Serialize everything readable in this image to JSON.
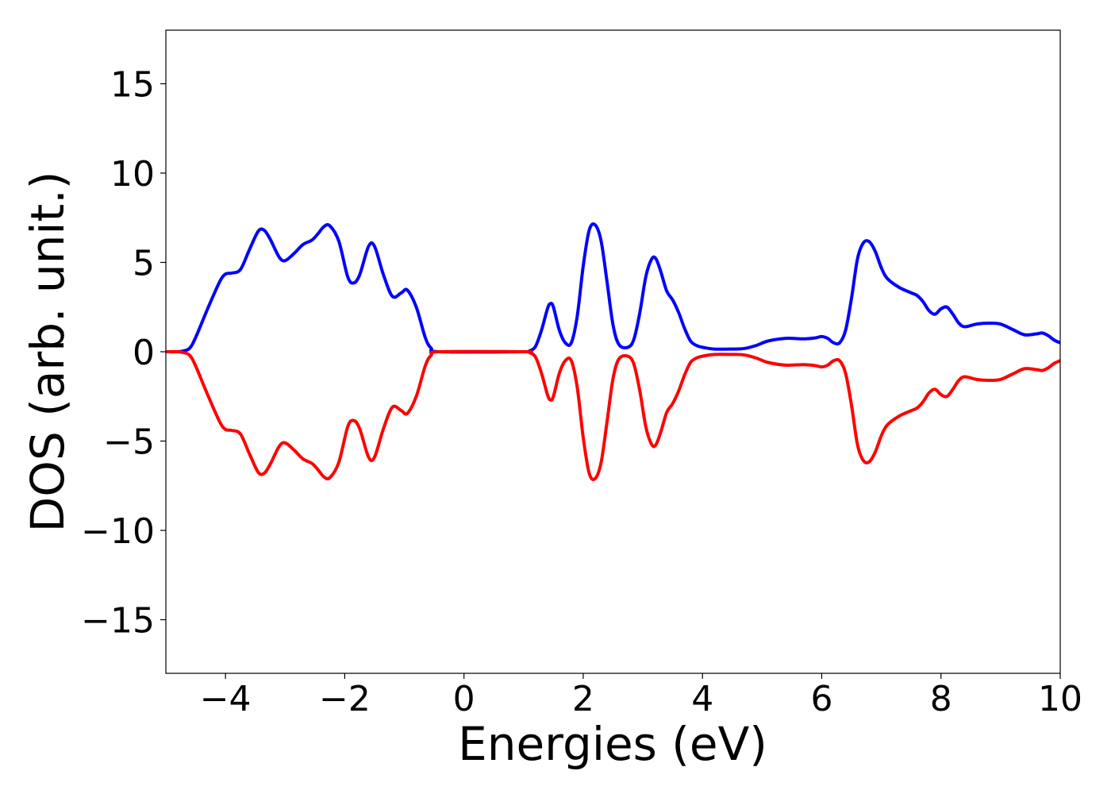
{
  "chart_data": {
    "type": "line",
    "xlabel": "Energies (eV)",
    "ylabel": "DOS (arb. unit.)",
    "xlim": [
      -5,
      10
    ],
    "ylim": [
      -18,
      18
    ],
    "xticks": [
      -4,
      -2,
      0,
      2,
      4,
      6,
      8,
      10
    ],
    "xtick_labels": [
      "−4",
      "−2",
      "0",
      "2",
      "4",
      "6",
      "8",
      "10"
    ],
    "yticks": [
      15,
      10,
      5,
      0,
      -5,
      -10,
      -15
    ],
    "ytick_labels": [
      "15",
      "10",
      "5",
      "0",
      "−5",
      "−10",
      "−15"
    ],
    "grid": false,
    "series": [
      {
        "color": "#0000ff",
        "x": [
          -5.0,
          -4.8,
          -4.7,
          -4.6,
          -4.5,
          -4.3,
          -4.1,
          -4.0,
          -3.9,
          -3.75,
          -3.6,
          -3.45,
          -3.35,
          -3.25,
          -3.1,
          -3.0,
          -2.85,
          -2.7,
          -2.55,
          -2.45,
          -2.35,
          -2.25,
          -2.1,
          -1.95,
          -1.85,
          -1.75,
          -1.6,
          -1.5,
          -1.35,
          -1.2,
          -1.05,
          -0.95,
          -0.8,
          -0.65,
          -0.55,
          -0.4,
          1.0,
          1.1,
          1.2,
          1.3,
          1.4,
          1.45,
          1.5,
          1.6,
          1.7,
          1.8,
          1.9,
          2.0,
          2.1,
          2.2,
          2.3,
          2.4,
          2.5,
          2.6,
          2.75,
          2.85,
          2.95,
          3.05,
          3.15,
          3.22,
          3.3,
          3.4,
          3.5,
          3.6,
          3.7,
          3.8,
          3.9,
          4.0,
          4.2,
          4.5,
          4.7,
          4.9,
          5.1,
          5.4,
          5.7,
          5.9,
          6.0,
          6.1,
          6.2,
          6.3,
          6.4,
          6.5,
          6.6,
          6.7,
          6.8,
          6.9,
          7.0,
          7.1,
          7.3,
          7.5,
          7.6,
          7.7,
          7.8,
          7.9,
          8.0,
          8.1,
          8.2,
          8.3,
          8.4,
          8.6,
          8.8,
          9.0,
          9.2,
          9.4,
          9.6,
          9.7,
          9.8,
          9.9,
          10.0
        ],
        "y": [
          0.0,
          0.0,
          0.05,
          0.2,
          0.8,
          2.4,
          3.9,
          4.35,
          4.4,
          4.6,
          5.7,
          6.75,
          6.8,
          6.3,
          5.3,
          5.1,
          5.5,
          6.0,
          6.25,
          6.6,
          7.0,
          7.05,
          6.2,
          4.2,
          3.85,
          4.3,
          5.9,
          5.9,
          4.3,
          3.1,
          3.3,
          3.45,
          2.5,
          0.8,
          0.2,
          0.0,
          0.0,
          0.05,
          0.3,
          1.2,
          2.4,
          2.7,
          2.5,
          1.2,
          0.5,
          0.5,
          2.0,
          4.8,
          6.8,
          7.1,
          6.2,
          3.9,
          1.5,
          0.4,
          0.25,
          0.7,
          2.2,
          4.2,
          5.2,
          5.2,
          4.5,
          3.4,
          2.9,
          2.2,
          1.3,
          0.6,
          0.35,
          0.25,
          0.15,
          0.15,
          0.18,
          0.35,
          0.6,
          0.75,
          0.72,
          0.78,
          0.85,
          0.75,
          0.5,
          0.5,
          1.2,
          3.0,
          5.2,
          6.1,
          6.15,
          5.6,
          4.7,
          4.1,
          3.6,
          3.3,
          3.15,
          2.8,
          2.3,
          2.1,
          2.4,
          2.5,
          2.1,
          1.6,
          1.4,
          1.55,
          1.6,
          1.55,
          1.25,
          0.95,
          1.0,
          1.05,
          0.9,
          0.65,
          0.5
        ]
      },
      {
        "color": "#ff0000",
        "x": [
          -5.0,
          -4.8,
          -4.7,
          -4.6,
          -4.5,
          -4.3,
          -4.1,
          -4.0,
          -3.9,
          -3.75,
          -3.6,
          -3.45,
          -3.35,
          -3.25,
          -3.1,
          -3.0,
          -2.85,
          -2.7,
          -2.55,
          -2.45,
          -2.35,
          -2.25,
          -2.1,
          -1.95,
          -1.85,
          -1.75,
          -1.6,
          -1.5,
          -1.35,
          -1.2,
          -1.05,
          -0.95,
          -0.8,
          -0.65,
          -0.55,
          -0.4,
          1.0,
          1.1,
          1.2,
          1.3,
          1.4,
          1.45,
          1.5,
          1.6,
          1.7,
          1.8,
          1.9,
          2.0,
          2.1,
          2.2,
          2.3,
          2.4,
          2.5,
          2.6,
          2.75,
          2.85,
          2.95,
          3.05,
          3.15,
          3.22,
          3.3,
          3.4,
          3.5,
          3.6,
          3.7,
          3.8,
          3.9,
          4.0,
          4.2,
          4.5,
          4.7,
          4.9,
          5.1,
          5.4,
          5.7,
          5.9,
          6.0,
          6.1,
          6.2,
          6.3,
          6.4,
          6.5,
          6.6,
          6.7,
          6.8,
          6.9,
          7.0,
          7.1,
          7.3,
          7.5,
          7.6,
          7.7,
          7.8,
          7.9,
          8.0,
          8.1,
          8.2,
          8.3,
          8.4,
          8.6,
          8.8,
          9.0,
          9.2,
          9.4,
          9.6,
          9.7,
          9.8,
          9.9,
          10.0
        ],
        "y": [
          0.0,
          0.0,
          -0.05,
          -0.2,
          -0.8,
          -2.4,
          -3.9,
          -4.35,
          -4.4,
          -4.6,
          -5.7,
          -6.75,
          -6.8,
          -6.3,
          -5.3,
          -5.1,
          -5.5,
          -6.0,
          -6.25,
          -6.6,
          -7.0,
          -7.05,
          -6.2,
          -4.2,
          -3.85,
          -4.3,
          -5.9,
          -5.9,
          -4.3,
          -3.1,
          -3.3,
          -3.45,
          -2.5,
          -0.8,
          -0.2,
          0.0,
          0.0,
          -0.05,
          -0.3,
          -1.2,
          -2.4,
          -2.7,
          -2.5,
          -1.2,
          -0.5,
          -0.5,
          -2.0,
          -4.8,
          -6.8,
          -7.1,
          -6.2,
          -3.9,
          -1.5,
          -0.4,
          -0.25,
          -0.7,
          -2.2,
          -4.2,
          -5.2,
          -5.2,
          -4.5,
          -3.4,
          -2.9,
          -2.2,
          -1.3,
          -0.6,
          -0.35,
          -0.25,
          -0.15,
          -0.15,
          -0.18,
          -0.35,
          -0.6,
          -0.75,
          -0.72,
          -0.78,
          -0.85,
          -0.75,
          -0.5,
          -0.5,
          -1.2,
          -3.0,
          -5.2,
          -6.1,
          -6.15,
          -5.6,
          -4.7,
          -4.1,
          -3.6,
          -3.3,
          -3.15,
          -2.8,
          -2.3,
          -2.1,
          -2.4,
          -2.5,
          -2.1,
          -1.6,
          -1.4,
          -1.55,
          -1.6,
          -1.55,
          -1.25,
          -0.95,
          -1.0,
          -1.05,
          -0.9,
          -0.65,
          -0.5
        ]
      }
    ]
  }
}
